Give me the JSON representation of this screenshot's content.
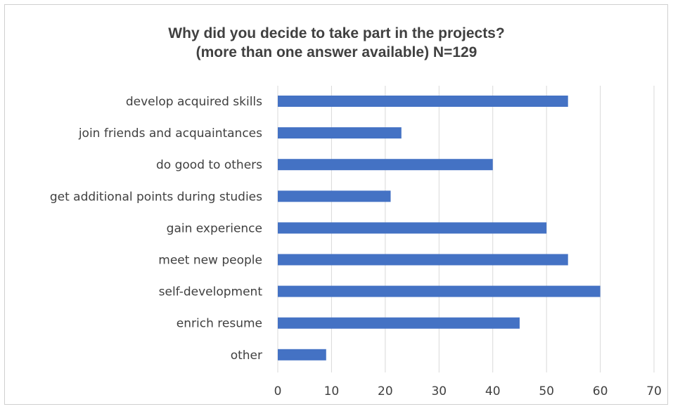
{
  "chart_data": {
    "type": "bar",
    "orientation": "horizontal",
    "title_lines": [
      "Why did you decide to take part in the projects?",
      "(more than one answer available) N=129"
    ],
    "categories": [
      "develop acquired skills",
      "join friends and acquaintances",
      "do good to others",
      "get additional points during studies",
      "gain experience",
      "meet new people",
      "self-development",
      "enrich resume",
      "other"
    ],
    "values": [
      54,
      23,
      40,
      21,
      50,
      54,
      60,
      45,
      9
    ],
    "xlim": [
      0,
      70
    ],
    "xticks": [
      "0",
      "10",
      "20",
      "30",
      "40",
      "50",
      "60",
      "70"
    ],
    "xlabel": "",
    "ylabel": "",
    "grid": "vertical",
    "legend": "none",
    "bar_color": "#4472c4",
    "grid_color": "#d9d9d9"
  }
}
